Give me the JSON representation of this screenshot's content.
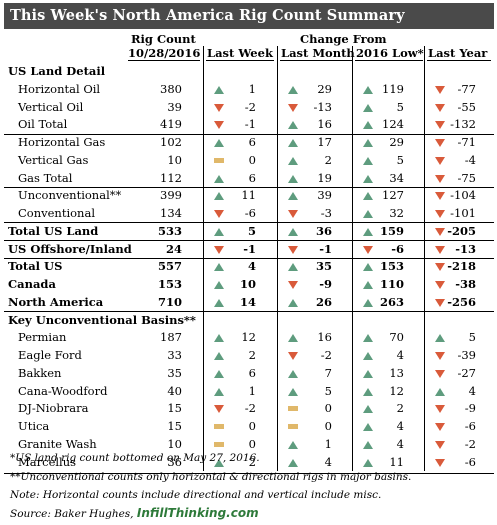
{
  "title": "This Week's North America Rig Count Summary",
  "header": {
    "rig_count": "Rig Count",
    "date": "10/28/2016",
    "change_from": "Change From",
    "last_week": "Last Week",
    "last_month": "Last Month",
    "low_2016": "2016 Low*",
    "last_year": "Last Year"
  },
  "rows": [
    {
      "label": "US Land Detail",
      "section": true
    },
    {
      "label": "Horizontal Oil",
      "count": "380",
      "lw": "1",
      "lwd": "up",
      "lm": "29",
      "lmd": "up",
      "lo": "119",
      "lod": "up",
      "ly": "-77",
      "lyd": "down",
      "indent": true
    },
    {
      "label": "Vertical Oil",
      "count": "39",
      "lw": "-2",
      "lwd": "down",
      "lm": "-13",
      "lmd": "down",
      "lo": "5",
      "lod": "up",
      "ly": "-55",
      "lyd": "down",
      "indent": true
    },
    {
      "label": "Oil Total",
      "count": "419",
      "lw": "-1",
      "lwd": "down",
      "lm": "16",
      "lmd": "up",
      "lo": "124",
      "lod": "up",
      "ly": "-132",
      "lyd": "down",
      "indent": true,
      "sep": true
    },
    {
      "label": "Horizontal Gas",
      "count": "102",
      "lw": "6",
      "lwd": "up",
      "lm": "17",
      "lmd": "up",
      "lo": "29",
      "lod": "up",
      "ly": "-71",
      "lyd": "down",
      "indent": true
    },
    {
      "label": "Vertical Gas",
      "count": "10",
      "lw": "0",
      "lwd": "flat",
      "lm": "2",
      "lmd": "up",
      "lo": "5",
      "lod": "up",
      "ly": "-4",
      "lyd": "down",
      "indent": true
    },
    {
      "label": "Gas Total",
      "count": "112",
      "lw": "6",
      "lwd": "up",
      "lm": "19",
      "lmd": "up",
      "lo": "34",
      "lod": "up",
      "ly": "-75",
      "lyd": "down",
      "indent": true,
      "sep": true
    },
    {
      "label": "Unconventional**",
      "count": "399",
      "lw": "11",
      "lwd": "up",
      "lm": "39",
      "lmd": "up",
      "lo": "127",
      "lod": "up",
      "ly": "-104",
      "lyd": "down",
      "indent": true
    },
    {
      "label": "Conventional",
      "count": "134",
      "lw": "-6",
      "lwd": "down",
      "lm": "-3",
      "lmd": "down",
      "lo": "32",
      "lod": "up",
      "ly": "-101",
      "lyd": "down",
      "indent": true,
      "sep": true
    },
    {
      "label": "Total US Land",
      "count": "533",
      "lw": "5",
      "lwd": "up",
      "lm": "36",
      "lmd": "up",
      "lo": "159",
      "lod": "up",
      "ly": "-205",
      "lyd": "down",
      "bold": true,
      "sep": true
    },
    {
      "label": "US Offshore/Inland",
      "count": "24",
      "lw": "-1",
      "lwd": "down",
      "lm": "-1",
      "lmd": "down",
      "lo": "-6",
      "lod": "down",
      "ly": "-13",
      "lyd": "down",
      "bold": true,
      "sep": true
    },
    {
      "label": "Total US",
      "count": "557",
      "lw": "4",
      "lwd": "up",
      "lm": "35",
      "lmd": "up",
      "lo": "153",
      "lod": "up",
      "ly": "-218",
      "lyd": "down",
      "bold": true
    },
    {
      "label": "Canada",
      "count": "153",
      "lw": "10",
      "lwd": "up",
      "lm": "-9",
      "lmd": "down",
      "lo": "110",
      "lod": "up",
      "ly": "-38",
      "lyd": "down",
      "bold": true
    },
    {
      "label": "North America",
      "count": "710",
      "lw": "14",
      "lwd": "up",
      "lm": "26",
      "lmd": "up",
      "lo": "263",
      "lod": "up",
      "ly": "-256",
      "lyd": "down",
      "bold": true,
      "sep": true
    },
    {
      "label": "Key Unconventional Basins**",
      "section": true
    },
    {
      "label": "Permian",
      "count": "187",
      "lw": "12",
      "lwd": "up",
      "lm": "16",
      "lmd": "up",
      "lo": "70",
      "lod": "up",
      "ly": "5",
      "lyd": "up",
      "indent": true
    },
    {
      "label": "Eagle Ford",
      "count": "33",
      "lw": "2",
      "lwd": "up",
      "lm": "-2",
      "lmd": "down",
      "lo": "4",
      "lod": "up",
      "ly": "-39",
      "lyd": "down",
      "indent": true
    },
    {
      "label": "Bakken",
      "count": "35",
      "lw": "6",
      "lwd": "up",
      "lm": "7",
      "lmd": "up",
      "lo": "13",
      "lod": "up",
      "ly": "-27",
      "lyd": "down",
      "indent": true
    },
    {
      "label": "Cana-Woodford",
      "count": "40",
      "lw": "1",
      "lwd": "up",
      "lm": "5",
      "lmd": "up",
      "lo": "12",
      "lod": "up",
      "ly": "4",
      "lyd": "up",
      "indent": true
    },
    {
      "label": "DJ-Niobrara",
      "count": "15",
      "lw": "-2",
      "lwd": "down",
      "lm": "0",
      "lmd": "flat",
      "lo": "2",
      "lod": "up",
      "ly": "-9",
      "lyd": "down",
      "indent": true
    },
    {
      "label": "Utica",
      "count": "15",
      "lw": "0",
      "lwd": "flat",
      "lm": "0",
      "lmd": "flat",
      "lo": "4",
      "lod": "up",
      "ly": "-6",
      "lyd": "down",
      "indent": true
    },
    {
      "label": "Granite Wash",
      "count": "10",
      "lw": "0",
      "lwd": "flat",
      "lm": "1",
      "lmd": "up",
      "lo": "4",
      "lod": "up",
      "ly": "-2",
      "lyd": "down",
      "indent": true
    },
    {
      "label": "Marcellus",
      "count": "36",
      "lw": "2",
      "lwd": "up",
      "lm": "4",
      "lmd": "up",
      "lo": "11",
      "lod": "up",
      "ly": "-6",
      "lyd": "down",
      "indent": true
    }
  ],
  "notes": [
    "*US land rig count bottomed on May 27, 2016.",
    "**Unconventional counts only horizontal & directional rigs in major basins.",
    "Note: Horizontal counts include directional and vertical include misc."
  ],
  "source_label": "Source: Baker Hughes,",
  "brand": "InfillThinking.com",
  "colors": {
    "up": "#5e9c7e",
    "down": "#d95a3a",
    "flat": "#e0b86a",
    "title_bg": "#4a4a4a",
    "brand": "#2e7a3a"
  }
}
